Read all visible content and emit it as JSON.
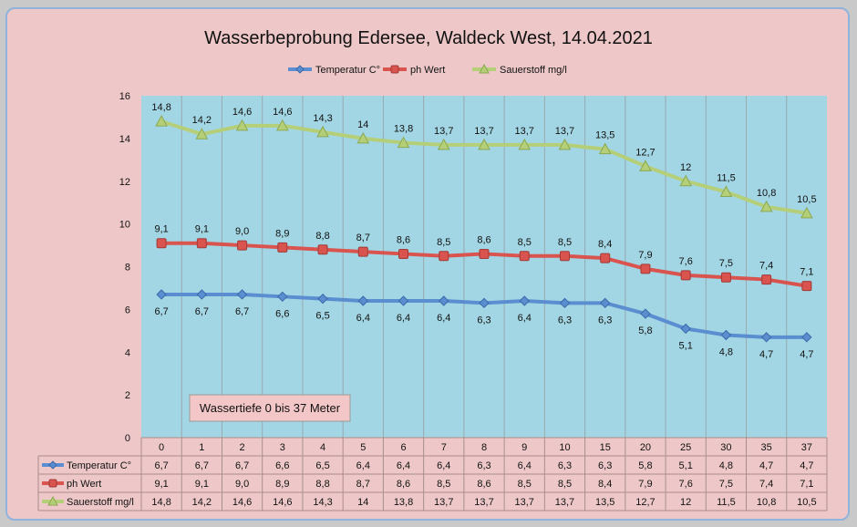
{
  "chart_data": {
    "type": "line",
    "title": "Wasserbeprobung Edersee, Waldeck West, 14.04.2021",
    "xlabel": "",
    "ylabel": "",
    "categories": [
      "0",
      "1",
      "2",
      "3",
      "4",
      "5",
      "6",
      "7",
      "8",
      "9",
      "10",
      "15",
      "20",
      "25",
      "30",
      "35",
      "37"
    ],
    "ylim": [
      0,
      16
    ],
    "yticks": [
      0,
      2,
      4,
      6,
      8,
      10,
      12,
      14,
      16
    ],
    "grid": true,
    "legend_position": "top",
    "series": [
      {
        "name": "Temperatur C°",
        "color": "#5b8ed0",
        "marker": "diamond",
        "values": [
          6.7,
          6.7,
          6.7,
          6.6,
          6.5,
          6.4,
          6.4,
          6.4,
          6.3,
          6.4,
          6.3,
          6.3,
          5.8,
          5.1,
          4.8,
          4.7,
          4.7
        ],
        "labels": [
          "6,7",
          "6,7",
          "6,7",
          "6,6",
          "6,5",
          "6,4",
          "6,4",
          "6,4",
          "6,3",
          "6,4",
          "6,3",
          "6,3",
          "5,8",
          "5,1",
          "4,8",
          "4,7",
          "4,7"
        ]
      },
      {
        "name": "ph Wert",
        "color": "#d9534f",
        "marker": "square",
        "values": [
          9.1,
          9.1,
          9.0,
          8.9,
          8.8,
          8.7,
          8.6,
          8.5,
          8.6,
          8.5,
          8.5,
          8.4,
          7.9,
          7.6,
          7.5,
          7.4,
          7.1
        ],
        "labels": [
          "9,1",
          "9,1",
          "9,0",
          "8,9",
          "8,8",
          "8,7",
          "8,6",
          "8,5",
          "8,6",
          "8,5",
          "8,5",
          "8,4",
          "7,9",
          "7,6",
          "7,5",
          "7,4",
          "7,1"
        ]
      },
      {
        "name": "Sauerstoff mg/l",
        "color": "#b5cf78",
        "marker": "triangle",
        "values": [
          14.8,
          14.2,
          14.6,
          14.6,
          14.3,
          14,
          13.8,
          13.7,
          13.7,
          13.7,
          13.7,
          13.5,
          12.7,
          12,
          11.5,
          10.8,
          10.5
        ],
        "labels": [
          "14,8",
          "14,2",
          "14,6",
          "14,6",
          "14,3",
          "14",
          "13,8",
          "13,7",
          "13,7",
          "13,7",
          "13,7",
          "13,5",
          "12,7",
          "12",
          "11,5",
          "10,8",
          "10,5"
        ]
      }
    ],
    "annotation": "Wassertiefe 0 bis 37 Meter"
  }
}
